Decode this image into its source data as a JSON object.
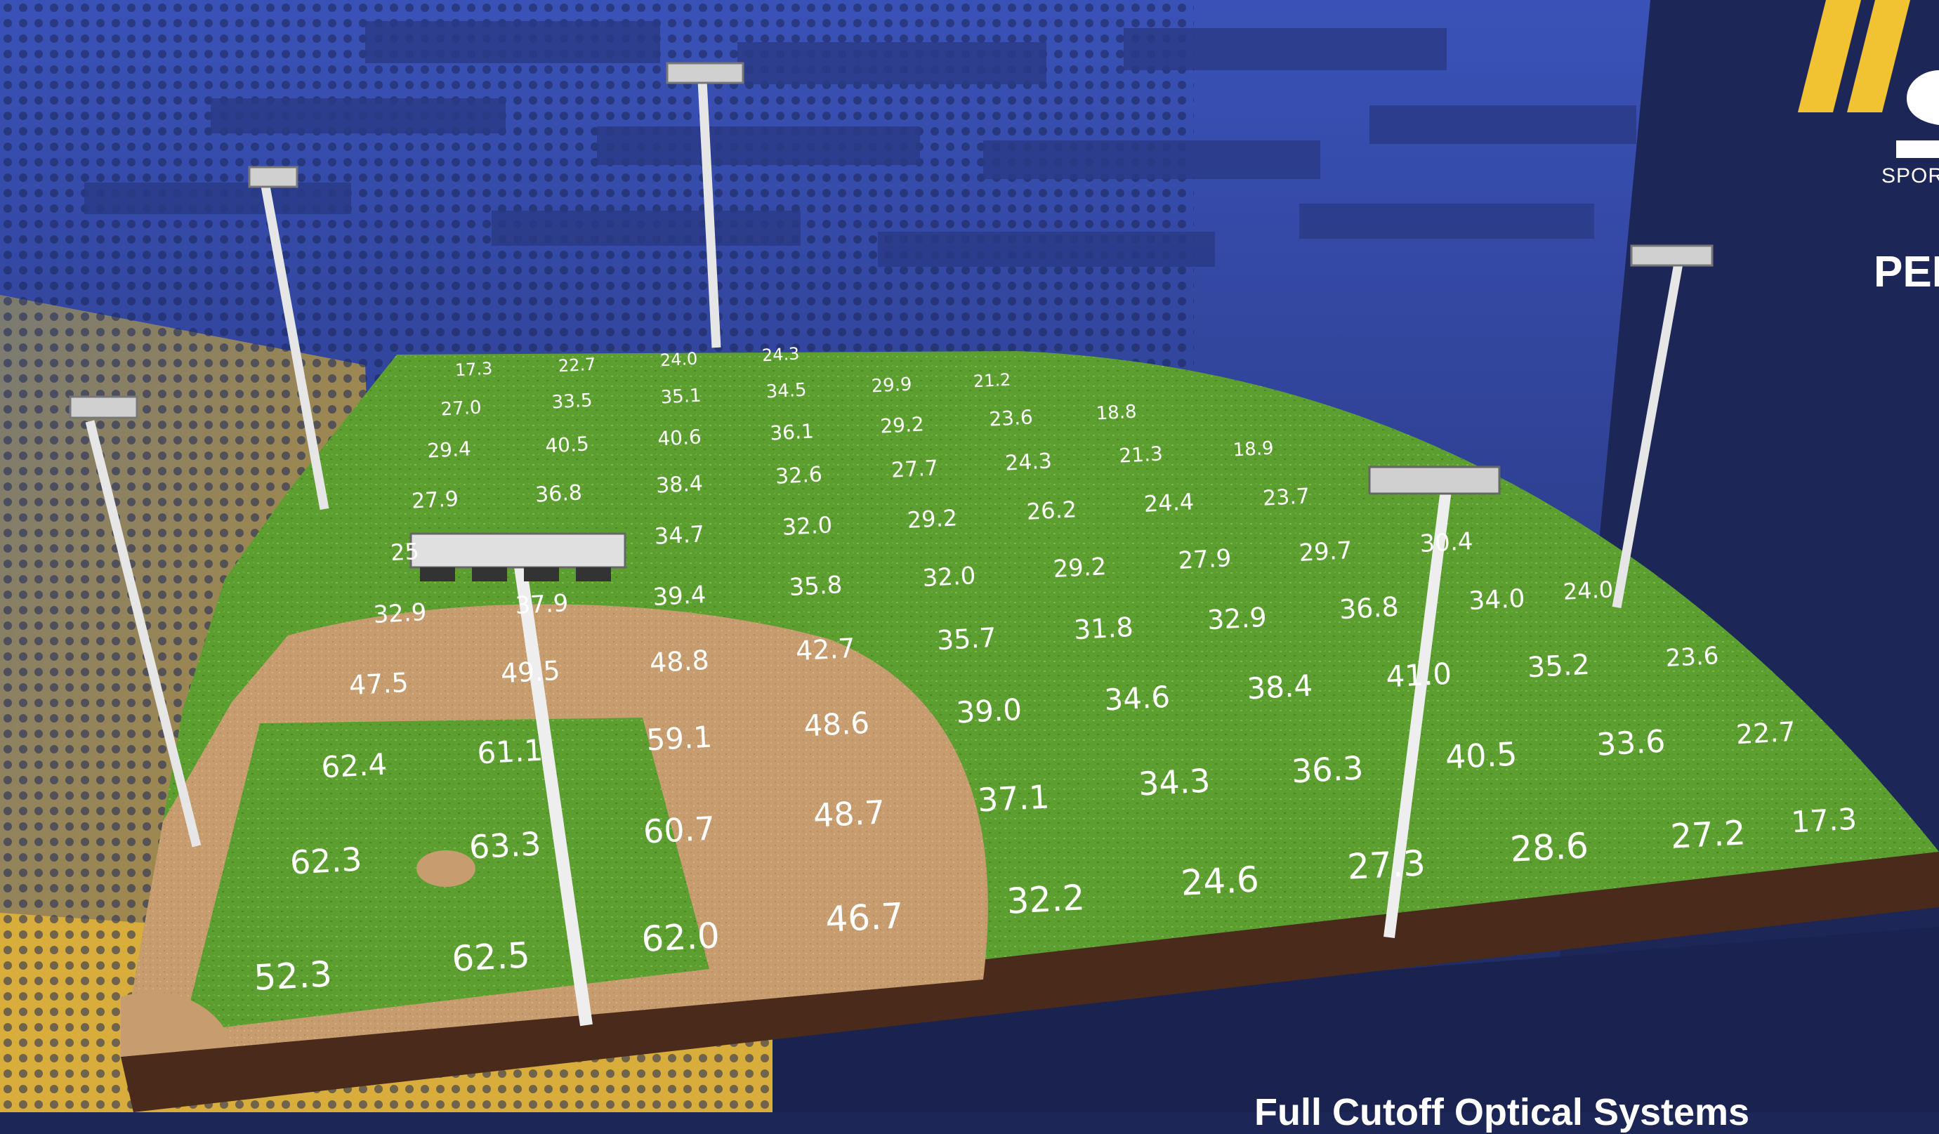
{
  "brand": {
    "logo_text": "SPOR",
    "heading_text": "PEI",
    "footer_text": "Full Cutoff Optical Systems",
    "accent_color": "#f1c232",
    "navy_color": "#1c2657",
    "blue_color": "#3a4fb0"
  },
  "field": {
    "grass_color": "#5a9e2f",
    "infield_dirt_color": "#c69a6d",
    "soil_color": "#4a2a1a",
    "readings": [
      "17.3",
      "22.7",
      "24.0",
      "24.3",
      "27.0",
      "33.5",
      "35.1",
      "34.5",
      "29.9",
      "21.2",
      "29.4",
      "40.5",
      "40.6",
      "36.1",
      "29.2",
      "23.6",
      "18.8",
      "27.9",
      "36.8",
      "38.4",
      "32.6",
      "27.7",
      "24.3",
      "21.3",
      "18.9",
      "25",
      "34.7",
      "32.0",
      "29.2",
      "26.2",
      "24.4",
      "23.7",
      "32.9",
      "37.9",
      "39.4",
      "35.8",
      "32.0",
      "29.2",
      "27.9",
      "29.7",
      "30.4",
      "24.0",
      "47.5",
      "49.5",
      "48.8",
      "42.7",
      "35.7",
      "31.8",
      "32.9",
      "36.8",
      "34.0",
      "23.6",
      "62.4",
      "61.1",
      "59.1",
      "48.6",
      "39.0",
      "34.6",
      "38.4",
      "41.0",
      "35.2",
      "22.7",
      "62.3",
      "63.3",
      "60.7",
      "48.7",
      "37.1",
      "34.3",
      "36.3",
      "40.5",
      "33.6",
      "17.3",
      "52.3",
      "62.5",
      "62.0",
      "46.7",
      "32.2",
      "24.6",
      "27.3",
      "28.6",
      "27.2"
    ]
  }
}
